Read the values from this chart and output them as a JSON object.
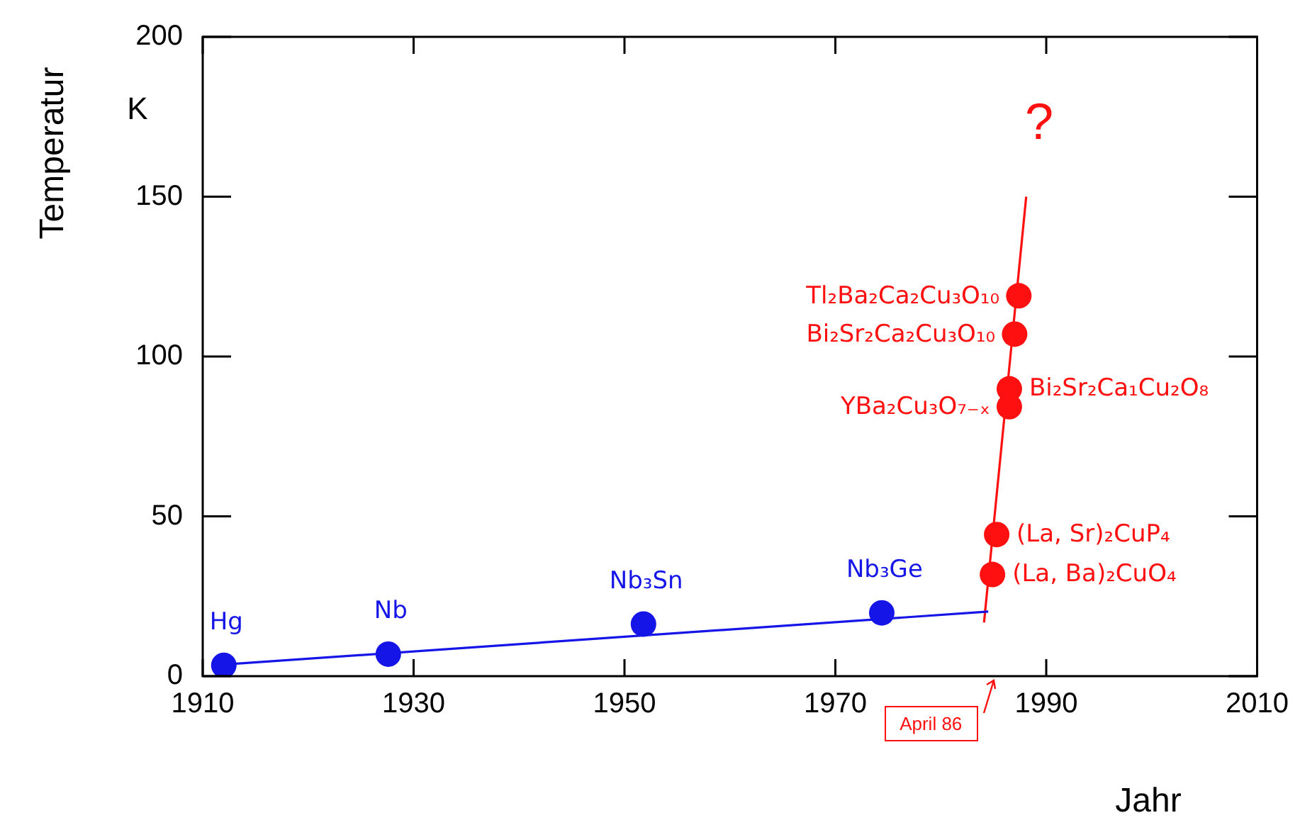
{
  "chart_data": {
    "type": "scatter",
    "xlabel": "Jahr",
    "ylabel": "Temperatur",
    "xlim": [
      1910,
      2010
    ],
    "xticks": [
      1910,
      1930,
      1950,
      1970,
      1990,
      2010
    ],
    "ylim": [
      0,
      200
    ],
    "yticks": [
      0,
      50,
      100,
      150,
      200
    ],
    "grid": false,
    "legend": false,
    "marker": "circle",
    "series": [
      {
        "type": "line",
        "marker": "none",
        "color": "#1515e8",
        "x": [
          1911,
          1984.5
        ],
        "values": [
          3.4,
          20.2
        ]
      },
      {
        "type": "scatter",
        "color": "#1515e8",
        "x": [
          1912,
          1927.6,
          1951.8,
          1974.4
        ],
        "values": [
          3.4,
          6.9,
          16.3,
          19.8
        ]
      },
      {
        "type": "line",
        "marker": "none",
        "color": "#ff1010",
        "x": [
          1984.1,
          1988.1
        ],
        "values": [
          16.8,
          150
        ]
      },
      {
        "type": "scatter",
        "color": "#ff1010",
        "x": [
          1984.9,
          1985.3,
          1986.5,
          1986.5,
          1987,
          1987.4
        ],
        "values": [
          31.8,
          44.3,
          84.3,
          89.9,
          107,
          119
        ]
      }
    ],
    "annotations": [
      "K",
      "?",
      "April 86",
      {
        "text": "Hg",
        "x": 1912,
        "y": 3.4
      },
      {
        "text": "Nb",
        "x": 1927.6,
        "y": 6.9
      },
      {
        "text": "Nb₃Sn",
        "x": 1951.8,
        "y": 16.3
      },
      {
        "text": "Nb₃Ge",
        "x": 1974.4,
        "y": 19.8
      },
      {
        "text": "(La, Ba)₂CuO₄",
        "x": 1984.9,
        "y": 31.8
      },
      {
        "text": "(La, Sr)₂CuP₄",
        "x": 1985.3,
        "y": 44.3
      },
      {
        "text": "YBa₂Cu₃O₇₋ₓ",
        "x": 1986.5,
        "y": 84.3
      },
      {
        "text": "Bi₂Sr₂Ca₁Cu₂O₈",
        "x": 1986.5,
        "y": 89.9
      },
      {
        "text": "Bi₂Sr₂Ca₂Cu₃O₁₀",
        "x": 1987,
        "y": 107
      },
      {
        "text": "Tl₂Ba₂Ca₂Cu₃O₁₀",
        "x": 1987.4,
        "y": 119
      }
    ]
  }
}
